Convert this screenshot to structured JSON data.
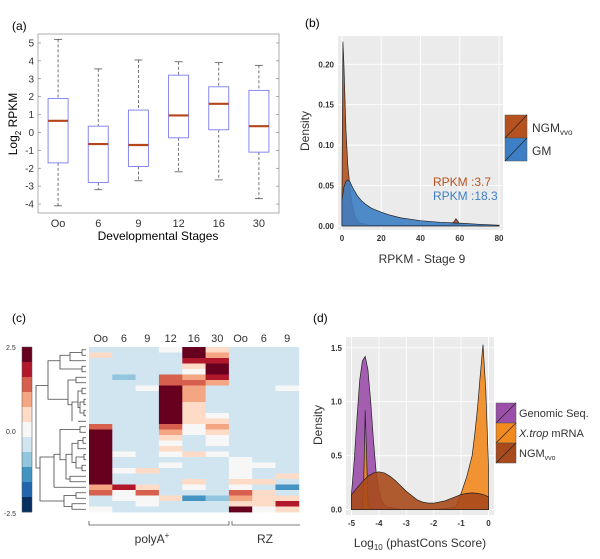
{
  "panel_labels": {
    "a": "(a)",
    "b": "(b)",
    "c": "(c)",
    "d": "(d)"
  },
  "chart_data": [
    {
      "id": "a",
      "type": "box",
      "title": "",
      "xlabel": "Developmental Stages",
      "ylabel_main": "Log",
      "ylabel_sub": "2",
      "ylabel_rest": " RPKM",
      "ylim": [
        -4.5,
        5.5
      ],
      "yticks": [
        5,
        4,
        3,
        2,
        1,
        0,
        -1,
        -2,
        -3,
        -4
      ],
      "categories": [
        "Oo",
        "6",
        "9",
        "12",
        "16",
        "30"
      ],
      "series": [
        {
          "name": "Oo",
          "whisker_low": -4.1,
          "q1": -1.7,
          "median": 0.65,
          "q3": 1.9,
          "whisker_high": 5.2
        },
        {
          "name": "6",
          "whisker_low": -3.2,
          "q1": -2.8,
          "median": -0.65,
          "q3": 0.35,
          "whisker_high": 3.55
        },
        {
          "name": "9",
          "whisker_low": -2.7,
          "q1": -1.9,
          "median": -0.7,
          "q3": 1.25,
          "whisker_high": 4.05
        },
        {
          "name": "12",
          "whisker_low": -2.2,
          "q1": -0.3,
          "median": 0.95,
          "q3": 3.2,
          "whisker_high": 3.95
        },
        {
          "name": "16",
          "whisker_low": -2.65,
          "q1": 0.15,
          "median": 1.6,
          "q3": 2.55,
          "whisker_high": 3.9
        },
        {
          "name": "30",
          "whisker_low": -3.7,
          "q1": -1.1,
          "median": 0.35,
          "q3": 2.35,
          "whisker_high": 3.75
        }
      ],
      "colors": {
        "box": "#7a7cf0",
        "median": "#b5451b",
        "whisker": "#555555"
      }
    },
    {
      "id": "b",
      "type": "area",
      "xlabel": "RPKM - Stage 9",
      "ylabel": "Density",
      "xlim": [
        -2,
        82
      ],
      "ylim": [
        -0.005,
        0.235
      ],
      "xticks": [
        0,
        20,
        40,
        60,
        80
      ],
      "yticks": [
        "0.00",
        "0.05",
        "0.10",
        "0.15",
        "0.20"
      ],
      "series": [
        {
          "name": "NGM",
          "name_sub": "vvo",
          "color": "#b5521f",
          "x": [
            0,
            0.5,
            1,
            2,
            3,
            4,
            5,
            6,
            7,
            8,
            9,
            10,
            12,
            14,
            20,
            30,
            40,
            55,
            57,
            58,
            59,
            60,
            62,
            70,
            80
          ],
          "y": [
            0.03,
            0.228,
            0.2,
            0.12,
            0.075,
            0.05,
            0.03,
            0.018,
            0.01,
            0.006,
            0.004,
            0.003,
            0.002,
            0.001,
            0.001,
            0.001,
            0.001,
            0.001,
            0.005,
            0.009,
            0.006,
            0.001,
            0.001,
            0.0,
            0.0
          ]
        },
        {
          "name": "GM",
          "name_sub": "",
          "color": "#3d7fc4",
          "x": [
            0,
            1,
            2,
            3,
            4,
            6,
            8,
            10,
            12,
            15,
            20,
            25,
            30,
            40,
            50,
            60,
            70,
            80
          ],
          "y": [
            0.032,
            0.048,
            0.055,
            0.057,
            0.055,
            0.045,
            0.037,
            0.031,
            0.027,
            0.022,
            0.017,
            0.013,
            0.01,
            0.0065,
            0.0045,
            0.0035,
            0.002,
            0.001
          ]
        }
      ],
      "annotations": [
        {
          "text": "RPKM :3.7",
          "color": "#b5521f"
        },
        {
          "text": "RPKM :18.3",
          "color": "#3d7fc4"
        }
      ],
      "legend_position": "right"
    },
    {
      "id": "c",
      "type": "heatmap",
      "columns": [
        "Oo",
        "6",
        "9",
        "12",
        "16",
        "30",
        "Oo",
        "6",
        "9"
      ],
      "groups": [
        {
          "label": "polyA",
          "sup": "+",
          "span": 6
        },
        {
          "label": "RZ",
          "sup": "",
          "span": 3
        }
      ],
      "colorbar": {
        "min": -2.5,
        "max": 2.5,
        "labels": [
          "2.5",
          "0.0",
          "-2.5"
        ],
        "colors": [
          "#67001f",
          "#b2182b",
          "#d6604d",
          "#f4a582",
          "#fddbc7",
          "#f7f7f7",
          "#d1e5f0",
          "#92c5de",
          "#4393c3",
          "#2166ac",
          "#053061"
        ]
      },
      "values": [
        [
          -0.4,
          -0.4,
          -0.4,
          0.0,
          2.5,
          0.6,
          -0.4,
          -0.4,
          -0.4
        ],
        [
          0.5,
          -0.4,
          -0.4,
          -0.4,
          2.5,
          1.0,
          -0.4,
          -0.4,
          -0.4
        ],
        [
          -0.4,
          -0.4,
          -0.4,
          -0.4,
          1.9,
          2.0,
          -0.4,
          -0.4,
          -0.4
        ],
        [
          -0.4,
          -0.4,
          -0.4,
          -0.4,
          0.3,
          2.5,
          -0.4,
          -0.4,
          -0.4
        ],
        [
          -0.4,
          -0.4,
          -0.4,
          -0.4,
          0.0,
          2.5,
          -0.4,
          -0.4,
          -0.4
        ],
        [
          -0.4,
          -1.0,
          -0.4,
          1.3,
          1.0,
          1.9,
          -0.4,
          -0.4,
          -0.4
        ],
        [
          -0.4,
          -0.4,
          -0.4,
          1.3,
          1.3,
          1.0,
          -0.4,
          -0.4,
          -0.4
        ],
        [
          -0.4,
          -0.4,
          0.0,
          2.5,
          0.9,
          -0.4,
          -0.4,
          -0.4,
          0.0
        ],
        [
          -0.4,
          -0.4,
          -0.4,
          2.5,
          0.9,
          -0.4,
          -0.4,
          -0.4,
          -0.4
        ],
        [
          -0.4,
          -0.4,
          -0.4,
          2.5,
          0.9,
          -0.4,
          -0.4,
          -0.4,
          -0.4
        ],
        [
          -0.4,
          -0.4,
          -0.4,
          2.5,
          0.5,
          -0.4,
          -0.4,
          -0.4,
          -0.4
        ],
        [
          -0.4,
          -0.4,
          -0.4,
          2.5,
          0.5,
          -0.4,
          -0.4,
          -0.4,
          -0.4
        ],
        [
          -0.4,
          -0.4,
          -0.4,
          2.5,
          0.5,
          0.0,
          -0.4,
          -0.4,
          -0.4
        ],
        [
          -0.4,
          -0.4,
          -0.4,
          2.5,
          0.5,
          0.5,
          -0.4,
          -0.4,
          -0.4
        ],
        [
          1.3,
          -0.7,
          -0.7,
          1.3,
          0.0,
          0.9,
          -0.4,
          -0.7,
          -0.7
        ],
        [
          2.5,
          -0.4,
          -0.4,
          0.9,
          0.0,
          0.5,
          -0.4,
          -0.7,
          -0.7
        ],
        [
          2.5,
          -0.4,
          -0.4,
          0.5,
          -0.4,
          0.0,
          -0.4,
          -0.4,
          -0.4
        ],
        [
          2.5,
          -0.4,
          -0.4,
          0.0,
          -0.4,
          0.0,
          -0.4,
          -0.4,
          -0.4
        ],
        [
          2.5,
          -0.4,
          -0.4,
          0.5,
          -0.4,
          -0.4,
          -0.4,
          -0.4,
          -0.4
        ],
        [
          2.5,
          0.0,
          -0.7,
          0.0,
          0.5,
          0.0,
          -0.4,
          -0.4,
          -0.7
        ],
        [
          2.5,
          -0.4,
          -0.4,
          -0.4,
          -0.4,
          -0.4,
          0.0,
          -0.4,
          -0.4
        ],
        [
          2.5,
          -0.4,
          -0.4,
          0.0,
          -0.7,
          -0.7,
          0.0,
          0.0,
          -0.4
        ],
        [
          2.5,
          0.0,
          0.5,
          -0.4,
          -0.4,
          -0.4,
          0.0,
          -0.4,
          -0.4
        ],
        [
          2.5,
          -0.4,
          -0.4,
          -0.7,
          -0.4,
          -0.4,
          0.0,
          -0.4,
          0.5
        ],
        [
          2.5,
          -0.4,
          -0.7,
          -0.7,
          0.5,
          -0.4,
          0.5,
          0.5,
          -0.4
        ],
        [
          1.0,
          2.0,
          0.5,
          -0.7,
          0.0,
          -0.7,
          0.0,
          -0.4,
          -1.3
        ],
        [
          1.3,
          0.0,
          1.3,
          -0.4,
          -0.4,
          -0.7,
          1.3,
          0.5,
          -0.4
        ],
        [
          -0.4,
          0.0,
          0.0,
          0.5,
          -1.3,
          -1.0,
          1.0,
          0.5,
          0.5
        ],
        [
          -0.4,
          -0.4,
          0.0,
          -0.4,
          -0.4,
          -0.7,
          0.5,
          0.5,
          2.0
        ],
        [
          0.0,
          -0.4,
          -0.4,
          -0.7,
          -0.4,
          -0.7,
          2.5,
          0.0,
          0.5
        ]
      ]
    },
    {
      "id": "d",
      "type": "area",
      "xlabel_pre": "Log",
      "xlabel_sub": "10",
      "xlabel_post": " (phastCons Score)",
      "ylabel": "Density",
      "xlim": [
        -5.2,
        0.2
      ],
      "ylim": [
        -0.05,
        1.6
      ],
      "xticks": [
        -5,
        -4,
        -3,
        -2,
        -1,
        0
      ],
      "yticks": [
        "0.0",
        "0.5",
        "1.0",
        "1.5"
      ],
      "series": [
        {
          "name": "Genomic Seq.",
          "italic": "",
          "rest": "",
          "color": "#9b4fa8",
          "x": [
            -5,
            -4.9,
            -4.8,
            -4.7,
            -4.6,
            -4.5,
            -4.4,
            -4.3,
            -4.2,
            -4.1,
            -4.0,
            -3.9,
            -3.8,
            -3.6,
            -3.4,
            -3.2,
            -3.0,
            -2.5,
            -2.0,
            -1.5,
            -1.0,
            -0.5,
            0
          ],
          "y": [
            0.15,
            0.45,
            0.85,
            1.2,
            1.38,
            1.42,
            1.3,
            1.0,
            0.65,
            0.35,
            0.18,
            0.08,
            0.04,
            0.02,
            0.01,
            0.0,
            0.0,
            0.0,
            0.0,
            0.0,
            0.0,
            0.0,
            0.0
          ]
        },
        {
          "name": "",
          "italic": "X.trop",
          "rest": " mRNA",
          "color": "#f28a1e",
          "x": [
            -5,
            -4.7,
            -4.6,
            -4.55,
            -4.5,
            -4.45,
            -4.4,
            -4.35,
            -4.2,
            -4.0,
            -3.0,
            -2.0,
            -1.2,
            -1.0,
            -0.8,
            -0.6,
            -0.5,
            -0.4,
            -0.3,
            -0.2,
            -0.1,
            0
          ],
          "y": [
            0.0,
            0.0,
            0.02,
            0.3,
            0.92,
            0.5,
            0.08,
            0.02,
            0.0,
            0.0,
            0.0,
            0.0,
            0.02,
            0.15,
            0.3,
            0.5,
            0.7,
            0.95,
            1.25,
            1.53,
            1.1,
            0.4
          ]
        },
        {
          "name": "NGM",
          "name_sub": "vvo",
          "italic": "",
          "rest": "",
          "color": "#a84a1b",
          "x": [
            -5,
            -4.8,
            -4.6,
            -4.4,
            -4.2,
            -4.0,
            -3.8,
            -3.6,
            -3.4,
            -3.2,
            -3.0,
            -2.8,
            -2.6,
            -2.4,
            -2.2,
            -2.0,
            -1.8,
            -1.6,
            -1.4,
            -1.2,
            -1.0,
            -0.8,
            -0.6,
            -0.4,
            -0.2,
            0
          ],
          "y": [
            0.14,
            0.2,
            0.26,
            0.31,
            0.34,
            0.35,
            0.34,
            0.31,
            0.27,
            0.22,
            0.17,
            0.13,
            0.09,
            0.07,
            0.06,
            0.06,
            0.07,
            0.08,
            0.1,
            0.12,
            0.14,
            0.15,
            0.155,
            0.15,
            0.14,
            0.12
          ]
        }
      ],
      "legend_position": "right"
    }
  ]
}
